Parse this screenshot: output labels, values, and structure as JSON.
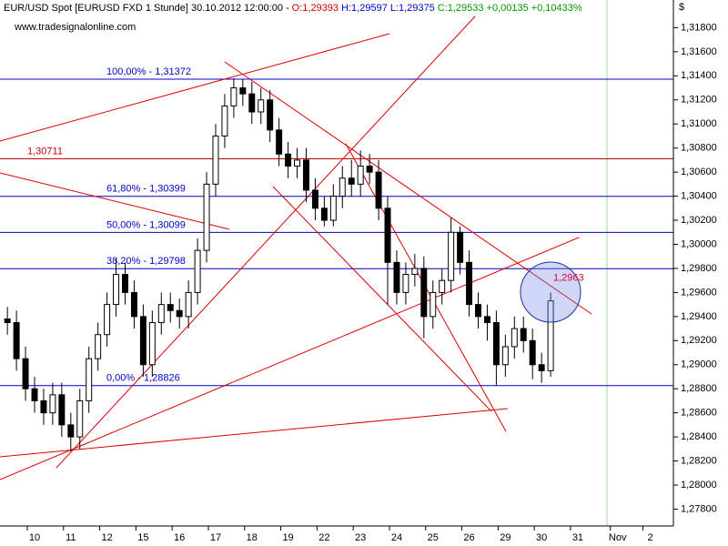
{
  "chart_data": {
    "type": "candlestick",
    "header": {
      "parts": [
        {
          "text": "EUR/USD Spot [EURUSD FXD  1 Stunde] 30.10.2012 12:00:00 -",
          "color": "#000000"
        },
        {
          "text": "O:1,29393",
          "color": "#cc0000"
        },
        {
          "text": "H:1,29597",
          "color": "#0000cc"
        },
        {
          "text": "L:1,29375",
          "color": "#0000cc"
        },
        {
          "text": "C:1,29533",
          "color": "#009900"
        },
        {
          "text": "+0,00135",
          "color": "#009900"
        },
        {
          "text": "+0,10433%",
          "color": "#009900"
        }
      ]
    },
    "watermark": "www.tradesignalonline.com",
    "currency": "$",
    "x": [
      -0.75,
      -0.5,
      -0.25,
      0,
      0.25,
      0.5,
      0.75,
      1,
      1.25,
      1.5,
      1.75,
      2,
      2.25,
      2.5,
      2.75,
      3,
      3.25,
      3.5,
      3.75,
      4,
      4.25,
      4.5,
      4.75,
      5,
      5.25,
      5.5,
      5.75,
      6,
      6.25,
      6.5,
      6.75,
      7,
      7.25,
      7.5,
      7.75,
      8,
      8.25,
      8.5,
      8.75,
      9,
      9.25,
      9.5,
      9.75,
      10,
      10.25,
      10.5,
      10.75,
      11,
      11.25,
      11.5,
      11.75,
      12,
      12.25,
      12.5,
      12.75,
      13,
      13.25,
      13.5,
      13.75,
      14,
      14.25
    ],
    "open": [
      1.2938,
      1.2935,
      1.2905,
      1.288,
      1.287,
      1.286,
      1.2875,
      1.285,
      1.284,
      1.287,
      1.2905,
      1.2925,
      1.295,
      1.2975,
      1.296,
      1.294,
      1.29,
      1.2935,
      1.295,
      1.2945,
      1.294,
      1.296,
      1.2995,
      1.305,
      1.309,
      1.3115,
      1.313,
      1.3125,
      1.311,
      1.312,
      1.3095,
      1.3075,
      1.3065,
      1.307,
      1.3045,
      1.303,
      1.302,
      1.304,
      1.3055,
      1.305,
      1.3065,
      1.306,
      1.303,
      1.2985,
      1.296,
      1.2975,
      1.298,
      1.294,
      1.296,
      1.297,
      1.301,
      1.2985,
      1.295,
      1.294,
      1.2935,
      1.29,
      1.2915,
      1.293,
      1.292,
      1.29,
      1.2895
    ],
    "high": [
      1.2948,
      1.2945,
      1.2915,
      1.289,
      1.288,
      1.2885,
      1.2885,
      1.286,
      1.288,
      1.2915,
      1.2935,
      1.296,
      1.2988,
      1.2985,
      1.297,
      1.295,
      1.2945,
      1.296,
      1.296,
      1.2955,
      1.297,
      1.3005,
      1.306,
      1.31,
      1.3125,
      1.3138,
      1.3137,
      1.3135,
      1.313,
      1.3128,
      1.3105,
      1.3085,
      1.308,
      1.308,
      1.3055,
      1.304,
      1.305,
      1.3065,
      1.307,
      1.3078,
      1.3075,
      1.307,
      1.304,
      1.2995,
      1.2985,
      1.2992,
      1.299,
      1.297,
      1.298,
      1.3022,
      1.3015,
      1.2995,
      1.296,
      1.295,
      1.2945,
      1.2925,
      1.294,
      1.294,
      1.293,
      1.291,
      1.296
    ],
    "low": [
      1.2925,
      1.2895,
      1.287,
      1.286,
      1.285,
      1.285,
      1.284,
      1.2828,
      1.283,
      1.286,
      1.2895,
      1.2915,
      1.294,
      1.295,
      1.293,
      1.289,
      1.289,
      1.2925,
      1.2935,
      1.293,
      1.293,
      1.295,
      1.2985,
      1.304,
      1.308,
      1.3105,
      1.3115,
      1.31,
      1.31,
      1.3085,
      1.3065,
      1.3055,
      1.3055,
      1.3035,
      1.302,
      1.3015,
      1.3015,
      1.303,
      1.304,
      1.304,
      1.305,
      1.302,
      1.295,
      1.295,
      1.295,
      1.2965,
      1.2922,
      1.293,
      1.295,
      1.296,
      1.2975,
      1.294,
      1.293,
      1.292,
      1.2883,
      1.289,
      1.2905,
      1.291,
      1.2888,
      1.2885,
      1.289
    ],
    "close": [
      1.2935,
      1.2905,
      1.288,
      1.287,
      1.286,
      1.2875,
      1.285,
      1.284,
      1.287,
      1.2905,
      1.2925,
      1.295,
      1.2975,
      1.296,
      1.294,
      1.29,
      1.2935,
      1.295,
      1.2945,
      1.294,
      1.296,
      1.2995,
      1.305,
      1.309,
      1.3115,
      1.313,
      1.3125,
      1.311,
      1.312,
      1.3095,
      1.3075,
      1.3065,
      1.307,
      1.3045,
      1.303,
      1.302,
      1.304,
      1.3055,
      1.305,
      1.3065,
      1.306,
      1.303,
      1.2985,
      1.296,
      1.2975,
      1.298,
      1.294,
      1.296,
      1.297,
      1.301,
      1.2985,
      1.295,
      1.294,
      1.2935,
      1.29,
      1.2915,
      1.293,
      1.292,
      1.29,
      1.2895,
      1.2953
    ],
    "up_color": "#ffffff",
    "down_color": "#000000",
    "wick_color": "#000000",
    "xlim": [
      -0.955,
      17.64
    ],
    "ylim": [
      1.2766,
      1.3203
    ],
    "xticks": [
      {
        "value": 0,
        "label": "10"
      },
      {
        "value": 1,
        "label": "11"
      },
      {
        "value": 2,
        "label": "12"
      },
      {
        "value": 3,
        "label": "15"
      },
      {
        "value": 4,
        "label": "16"
      },
      {
        "value": 5,
        "label": "17"
      },
      {
        "value": 6,
        "label": "18"
      },
      {
        "value": 7,
        "label": "19"
      },
      {
        "value": 8,
        "label": "22"
      },
      {
        "value": 9,
        "label": "23"
      },
      {
        "value": 10,
        "label": "24"
      },
      {
        "value": 11,
        "label": "25"
      },
      {
        "value": 12,
        "label": "26"
      },
      {
        "value": 13,
        "label": "29"
      },
      {
        "value": 14,
        "label": "30"
      },
      {
        "value": 15,
        "label": "31"
      },
      {
        "value": 16.1,
        "label": "Nov"
      },
      {
        "value": 17,
        "label": "2"
      }
    ],
    "yticks": [
      {
        "value": 1.278,
        "label": "1,27800"
      },
      {
        "value": 1.28,
        "label": "1,28000"
      },
      {
        "value": 1.282,
        "label": "1,28200"
      },
      {
        "value": 1.284,
        "label": "1,28400"
      },
      {
        "value": 1.286,
        "label": "1,28600"
      },
      {
        "value": 1.288,
        "label": "1,28800"
      },
      {
        "value": 1.29,
        "label": "1,29000"
      },
      {
        "value": 1.292,
        "label": "1,29200"
      },
      {
        "value": 1.294,
        "label": "1,29400"
      },
      {
        "value": 1.296,
        "label": "1,29600"
      },
      {
        "value": 1.298,
        "label": "1,29800"
      },
      {
        "value": 1.3,
        "label": "1,30000"
      },
      {
        "value": 1.302,
        "label": "1,30200"
      },
      {
        "value": 1.304,
        "label": "1,30400"
      },
      {
        "value": 1.306,
        "label": "1,30600"
      },
      {
        "value": 1.308,
        "label": "1,30800"
      },
      {
        "value": 1.31,
        "label": "1,31000"
      },
      {
        "value": 1.312,
        "label": "1,31200"
      },
      {
        "value": 1.314,
        "label": "1,31400"
      },
      {
        "value": 1.316,
        "label": "1,31600"
      },
      {
        "value": 1.318,
        "label": "1,31800"
      }
    ],
    "levels": [
      {
        "label": "100,00% - 1,31372",
        "value": 1.31372,
        "color": "#0000cc"
      },
      {
        "label": "61,80% - 1,30399",
        "value": 1.30399,
        "color": "#0000cc"
      },
      {
        "label": "50,00% - 1,30099",
        "value": 1.30099,
        "color": "#0000cc"
      },
      {
        "label": "38,20% - 1,29798",
        "value": 1.29798,
        "color": "#0000cc"
      },
      {
        "label": "0,00% - 1,28826",
        "value": 1.28826,
        "color": "#0000cc"
      },
      {
        "label": "1,30711",
        "value": 1.30711,
        "color": "#cc0000"
      }
    ],
    "annotation": {
      "label": "1,2963",
      "value": 1.2963,
      "color": "#dd0033"
    }
  }
}
